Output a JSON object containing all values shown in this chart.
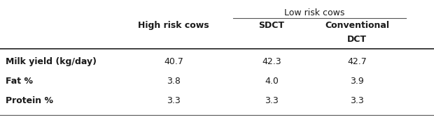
{
  "group_header": "Low risk cows",
  "col_headers": [
    "High risk cows",
    "SDCT",
    "Conventional\nDCT"
  ],
  "rows": [
    {
      "label": "Milk yield (kg/day)",
      "values": [
        "40.7",
        "42.3",
        "42.7"
      ]
    },
    {
      "label": "Fat %",
      "values": [
        "3.8",
        "4.0",
        "3.9"
      ]
    },
    {
      "label": "Protein %",
      "values": [
        "3.3",
        "3.3",
        "3.3"
      ]
    }
  ],
  "background_color": "#ffffff",
  "text_color": "#1a1a1a",
  "font_size": 9
}
